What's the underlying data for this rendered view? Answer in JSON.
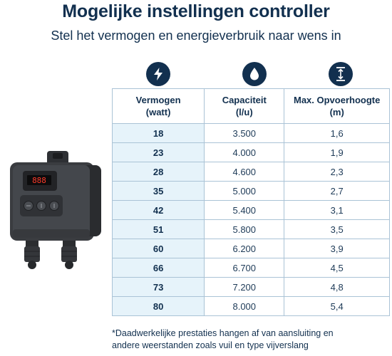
{
  "header": {
    "title": "Mogelijke instellingen controller",
    "subtitle": "Stel het vermogen en energieverbruik naar wens in"
  },
  "icons": {
    "power": "lightning-icon",
    "capacity": "water-drop-icon",
    "height": "vertical-height-icon",
    "color": "#12304f"
  },
  "table": {
    "headers": [
      {
        "line1": "Vermogen",
        "line2": "(watt)"
      },
      {
        "line1": "Capaciteit",
        "line2": "(l/u)"
      },
      {
        "line1": "Max. Opvoerhoogte",
        "line2": "(m)"
      }
    ],
    "rows": [
      {
        "power": "18",
        "capacity": "3.500",
        "height": "1,6"
      },
      {
        "power": "23",
        "capacity": "4.000",
        "height": "1,9"
      },
      {
        "power": "28",
        "capacity": "4.600",
        "height": "2,3"
      },
      {
        "power": "35",
        "capacity": "5.000",
        "height": "2,7"
      },
      {
        "power": "42",
        "capacity": "5.400",
        "height": "3,1"
      },
      {
        "power": "51",
        "capacity": "5.800",
        "height": "3,5"
      },
      {
        "power": "60",
        "capacity": "6.200",
        "height": "3,9"
      },
      {
        "power": "66",
        "capacity": "6.700",
        "height": "4,5"
      },
      {
        "power": "73",
        "capacity": "7.200",
        "height": "4,8"
      },
      {
        "power": "80",
        "capacity": "8.000",
        "height": "5,4"
      }
    ]
  },
  "device": {
    "display_text": "888"
  },
  "footnote": {
    "line1": "*Daadwerkelijke prestaties hangen af van aansluiting en",
    "line2": "andere weerstanden zoals vuil en type vijverslang"
  }
}
